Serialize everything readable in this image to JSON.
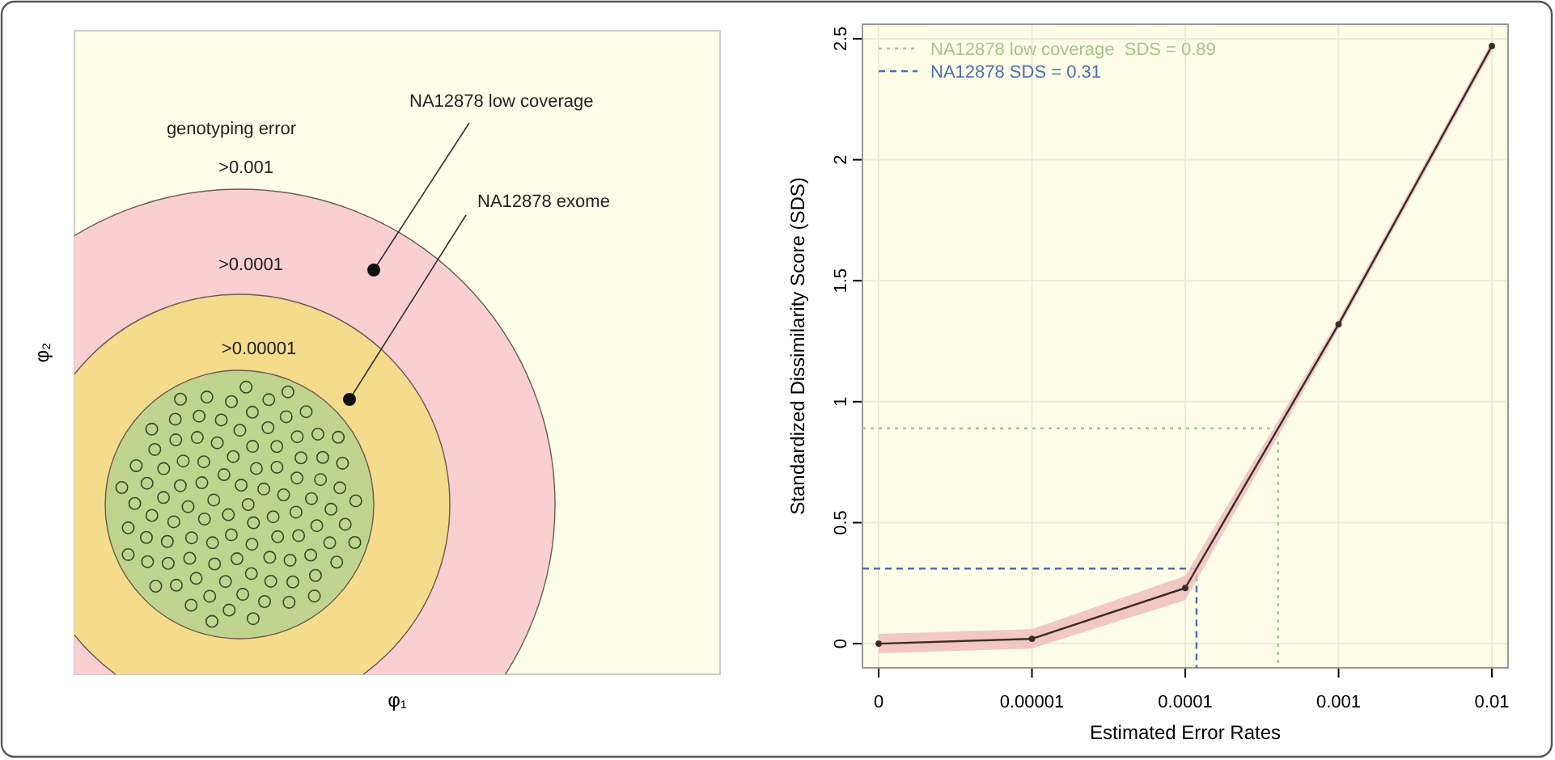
{
  "chart_data": [
    {
      "type": "other",
      "xlabel": "φ₁",
      "ylabel": "φ₂",
      "annotations": [
        "genotyping error",
        ">0.001",
        ">0.0001",
        ">0.00001",
        "NA12878 low coverage",
        "NA12878 exome"
      ]
    },
    {
      "type": "line",
      "xlabel": "Estimated Error Rates",
      "ylabel": "Standardized Dissimilarity Score (SDS)",
      "categories": [
        "0",
        "0.00001",
        "0.0001",
        "0.001",
        "0.01"
      ],
      "series": [
        {
          "color": "#3b2b2b",
          "values": [
            0,
            0.02,
            0.23,
            1.32,
            2.47
          ],
          "lower": [
            -0.04,
            -0.02,
            0.18,
            1.3,
            2.45
          ],
          "upper": [
            0.04,
            0.06,
            0.28,
            1.34,
            2.49
          ]
        }
      ],
      "ylim": [
        -0.1,
        2.56
      ],
      "yticks": [
        0,
        0.5,
        1,
        1.5,
        2,
        2.5
      ],
      "grid": true,
      "marker": "circle",
      "legend": "top left",
      "ref_lines": [
        {
          "axis": "y",
          "value": 0.89,
          "label": "NA12878 low coverage  SDS = 0.89",
          "color": "#a9c48f",
          "line_style": "dotted"
        },
        {
          "axis": "y",
          "value": 0.31,
          "label": "NA12878 SDS = 0.31",
          "color": "#4a6fb0",
          "line_style": "dashed"
        }
      ]
    }
  ]
}
